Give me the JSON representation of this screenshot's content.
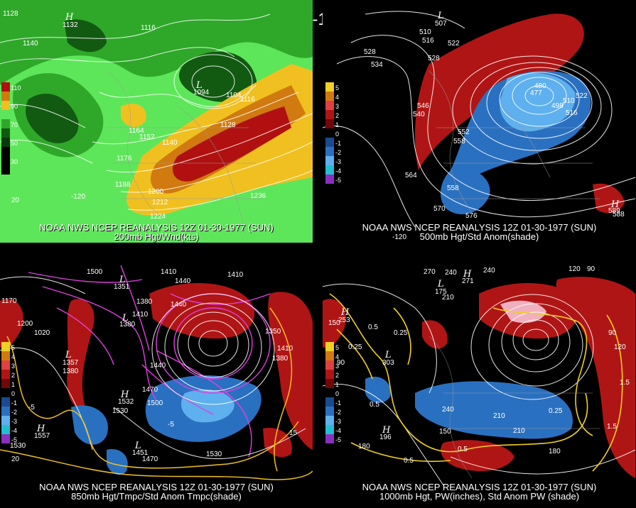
{
  "title": "12Z 01-30-1977 (SUN)",
  "panels": [
    {
      "caption_line1": "NOAA NWS NCEP REANALYSIS 12Z 01-30-1977 (SUN)",
      "caption_line2": "200mb Hgt/Wnd(kts)",
      "legend_labels": [
        "110",
        "90",
        "70",
        "50",
        "30"
      ],
      "contour_labels": [
        "1128",
        "1140",
        "1116",
        "1104",
        "1116",
        "1128",
        "1164",
        "1152",
        "1140",
        "1176",
        "1188",
        "1200",
        "1212",
        "1224",
        "1236",
        "-120",
        "20"
      ],
      "pressure_centers": [
        {
          "type": "H",
          "value": "1132"
        },
        {
          "type": "L",
          "value": "1094"
        }
      ]
    },
    {
      "caption_line1": "NOAA NWS NCEP REANALYSIS 12Z 01-30-1977 (SUN)",
      "caption_line2": "500mb Hgt/Std Anom(shade)",
      "legend_labels": [
        "5",
        "4",
        "3",
        "2",
        "1",
        "0",
        "-1",
        "-2",
        "-3",
        "-4",
        "-5"
      ],
      "contour_labels": [
        "510",
        "516",
        "522",
        "528",
        "534",
        "528",
        "546",
        "540",
        "552",
        "558",
        "564",
        "558",
        "570",
        "576",
        "480",
        "498",
        "510",
        "516",
        "522",
        "588",
        "-120"
      ],
      "pressure_centers": [
        {
          "type": "L",
          "value": "507"
        },
        {
          "type": "L",
          "value": "477"
        },
        {
          "type": "H",
          "value": "589"
        }
      ]
    },
    {
      "caption_line1": "NOAA NWS NCEP REANALYSIS 12Z 01-30-1977 (SUN)",
      "caption_line2": "850mb Hgt/Tmpc/Std Anom Tmpc(shade)",
      "legend_labels": [
        "5",
        "4",
        "3",
        "2",
        "1",
        "0",
        "-1",
        "-2",
        "-3",
        "-4",
        "-5"
      ],
      "contour_labels": [
        "1500",
        "1410",
        "1440",
        "1410",
        "1380",
        "1410",
        "1440",
        "1170",
        "1200",
        "1020",
        "1380",
        "1440",
        "1470",
        "1500",
        "1530",
        "1350",
        "1410",
        "1380",
        "1530",
        "1470",
        "1530",
        "-5",
        "-5",
        "15",
        "20"
      ],
      "pressure_centers": [
        {
          "type": "L",
          "value": "1351"
        },
        {
          "type": "L",
          "value": "1380"
        },
        {
          "type": "L",
          "value": "1357"
        },
        {
          "type": "H",
          "value": "1557"
        },
        {
          "type": "L",
          "value": "1451"
        },
        {
          "type": "H",
          "value": "1532"
        }
      ]
    },
    {
      "caption_line1": "NOAA NWS NCEP REANALYSIS 12Z 01-30-1977 (SUN)",
      "caption_line2": "1000mb Hgt, PW(inches), Std Anom PW (shade)",
      "legend_labels": [
        "5",
        "4",
        "3",
        "2",
        "1",
        "0",
        "-1",
        "-2",
        "-3",
        "-4",
        "-5"
      ],
      "contour_labels": [
        "270",
        "240",
        "240",
        "120",
        "90",
        "210",
        "150",
        "90",
        "0.5",
        "0.25",
        "0.5",
        "0.25",
        "0.5",
        "240",
        "210",
        "180",
        "150",
        "210",
        "180",
        "0.25",
        "1.5",
        "1.5",
        "90",
        "120",
        "0.5"
      ],
      "pressure_centers": [
        {
          "type": "H",
          "value": "271"
        },
        {
          "type": "L",
          "value": "175"
        },
        {
          "type": "H",
          "value": "253"
        },
        {
          "type": "L",
          "value": "303"
        },
        {
          "type": "H",
          "value": "196"
        }
      ]
    }
  ],
  "colors": {
    "wind_light": "#5ee65a",
    "wind_mid": "#2fa82a",
    "wind_dark": "#125a12",
    "wind_yellow": "#f0c020",
    "wind_orange": "#d07a10",
    "wind_red": "#b01010",
    "anom_pos": "#b01515",
    "anom_neg": "#2a70c0",
    "anom_light_blue": "#5fb0ee",
    "anom_pink": "#f0b0c0",
    "pw_yellow": "#f0d020",
    "temp_magenta": "#e040e0"
  }
}
